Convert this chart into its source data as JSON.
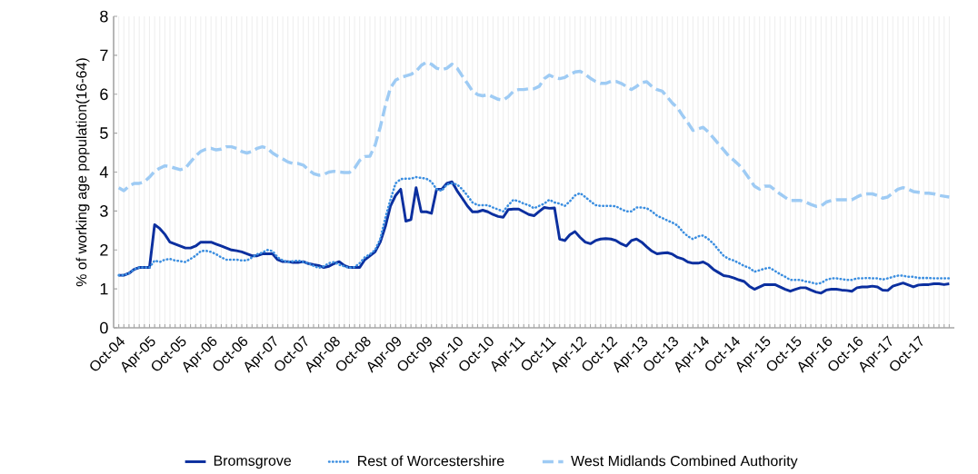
{
  "chart_data": {
    "type": "line",
    "ylabel": "% of working age population(16-64)",
    "categories": [
      "Oct-04",
      null,
      null,
      null,
      null,
      null,
      "Apr-05",
      null,
      null,
      null,
      null,
      null,
      "Oct-05",
      null,
      null,
      null,
      null,
      null,
      "Apr-06",
      null,
      null,
      null,
      null,
      null,
      "Oct-06",
      null,
      null,
      null,
      null,
      null,
      "Apr-07",
      null,
      null,
      null,
      null,
      null,
      "Oct-07",
      null,
      null,
      null,
      null,
      null,
      "Apr-08",
      null,
      null,
      null,
      null,
      null,
      "Oct-08",
      null,
      null,
      null,
      null,
      null,
      "Apr-09",
      null,
      null,
      null,
      null,
      null,
      "Oct-09",
      null,
      null,
      null,
      null,
      null,
      "Apr-10",
      null,
      null,
      null,
      null,
      null,
      "Oct-10",
      null,
      null,
      null,
      null,
      null,
      "Apr-11",
      null,
      null,
      null,
      null,
      null,
      "Oct-11",
      null,
      null,
      null,
      null,
      null,
      "Apr-12",
      null,
      null,
      null,
      null,
      null,
      "Oct-12",
      null,
      null,
      null,
      null,
      null,
      "Apr-13",
      null,
      null,
      null,
      null,
      null,
      "Oct-13",
      null,
      null,
      null,
      null,
      null,
      "Apr-14",
      null,
      null,
      null,
      null,
      null,
      "Oct-14",
      null,
      null,
      null,
      null,
      null,
      "Apr-15",
      null,
      null,
      null,
      null,
      null,
      "Oct-15",
      null,
      null,
      null,
      null,
      null,
      "Apr-16",
      null,
      null,
      null,
      null,
      null,
      "Oct-16",
      null,
      null,
      null,
      null,
      null,
      "Apr-17",
      null,
      null,
      null,
      null,
      null,
      "Oct-17",
      null,
      null,
      null,
      null,
      null,
      null
    ],
    "series": [
      {
        "name": "Bromsgrove",
        "color": "#0b2f9f",
        "line_style": "solid",
        "values": [
          1.35,
          1.35,
          1.4,
          1.5,
          1.55,
          1.55,
          1.55,
          2.65,
          2.55,
          2.4,
          2.2,
          2.15,
          2.1,
          2.05,
          2.05,
          2.1,
          2.2,
          2.2,
          2.2,
          2.15,
          2.1,
          2.05,
          2.0,
          1.98,
          1.95,
          1.9,
          1.85,
          1.85,
          1.9,
          1.9,
          1.9,
          1.75,
          1.7,
          1.7,
          1.68,
          1.68,
          1.7,
          1.65,
          1.62,
          1.6,
          1.55,
          1.58,
          1.65,
          1.7,
          1.6,
          1.55,
          1.55,
          1.55,
          1.75,
          1.85,
          1.95,
          2.2,
          2.6,
          3.13,
          3.4,
          3.56,
          2.74,
          2.78,
          3.6,
          2.98,
          2.98,
          2.94,
          3.56,
          3.56,
          3.71,
          3.75,
          3.52,
          3.33,
          3.13,
          2.98,
          2.98,
          3.02,
          2.98,
          2.91,
          2.86,
          2.84,
          3.04,
          3.05,
          3.05,
          2.98,
          2.91,
          2.88,
          2.99,
          3.09,
          3.07,
          3.08,
          2.28,
          2.24,
          2.39,
          2.47,
          2.32,
          2.2,
          2.16,
          2.24,
          2.28,
          2.29,
          2.28,
          2.24,
          2.16,
          2.1,
          2.24,
          2.28,
          2.2,
          2.08,
          1.97,
          1.9,
          1.92,
          1.93,
          1.89,
          1.81,
          1.77,
          1.69,
          1.66,
          1.66,
          1.69,
          1.62,
          1.5,
          1.42,
          1.34,
          1.32,
          1.28,
          1.23,
          1.19,
          1.07,
          0.99,
          1.05,
          1.11,
          1.11,
          1.11,
          1.05,
          0.99,
          0.94,
          0.99,
          1.03,
          1.03,
          0.97,
          0.92,
          0.89,
          0.97,
          0.99,
          0.99,
          0.97,
          0.96,
          0.94,
          1.03,
          1.05,
          1.05,
          1.07,
          1.05,
          0.97,
          0.96,
          1.07,
          1.11,
          1.15,
          1.1,
          1.05,
          1.1,
          1.11,
          1.11,
          1.13,
          1.13,
          1.11,
          1.13
        ]
      },
      {
        "name": "Rest of Worcestershire",
        "color": "#3b8ee0",
        "line_style": "dotted",
        "values": [
          1.35,
          1.35,
          1.4,
          1.5,
          1.55,
          1.55,
          1.55,
          1.73,
          1.69,
          1.75,
          1.77,
          1.73,
          1.71,
          1.69,
          1.77,
          1.85,
          1.97,
          1.98,
          1.95,
          1.89,
          1.81,
          1.75,
          1.75,
          1.75,
          1.73,
          1.73,
          1.81,
          1.89,
          1.93,
          2.0,
          1.97,
          1.81,
          1.73,
          1.69,
          1.71,
          1.73,
          1.69,
          1.66,
          1.59,
          1.54,
          1.58,
          1.66,
          1.69,
          1.62,
          1.58,
          1.54,
          1.56,
          1.66,
          1.81,
          1.89,
          2.0,
          2.28,
          2.82,
          3.29,
          3.71,
          3.82,
          3.83,
          3.83,
          3.87,
          3.85,
          3.83,
          3.75,
          3.56,
          3.52,
          3.68,
          3.71,
          3.68,
          3.56,
          3.4,
          3.22,
          3.15,
          3.15,
          3.15,
          3.09,
          3.04,
          2.99,
          3.15,
          3.29,
          3.25,
          3.19,
          3.15,
          3.07,
          3.13,
          3.19,
          3.29,
          3.22,
          3.19,
          3.13,
          3.25,
          3.4,
          3.46,
          3.36,
          3.25,
          3.15,
          3.13,
          3.13,
          3.13,
          3.12,
          3.05,
          2.99,
          2.99,
          3.09,
          3.09,
          3.07,
          2.99,
          2.88,
          2.82,
          2.76,
          2.7,
          2.63,
          2.47,
          2.35,
          2.28,
          2.35,
          2.37,
          2.28,
          2.16,
          2.0,
          1.85,
          1.77,
          1.73,
          1.66,
          1.59,
          1.54,
          1.44,
          1.48,
          1.52,
          1.54,
          1.46,
          1.38,
          1.31,
          1.23,
          1.23,
          1.23,
          1.19,
          1.17,
          1.13,
          1.15,
          1.23,
          1.27,
          1.27,
          1.25,
          1.23,
          1.23,
          1.27,
          1.27,
          1.28,
          1.27,
          1.27,
          1.24,
          1.27,
          1.31,
          1.34,
          1.34,
          1.31,
          1.31,
          1.28,
          1.28,
          1.28,
          1.27,
          1.27,
          1.27,
          1.27
        ]
      },
      {
        "name": "West Midlands Combined Authority",
        "color": "#9ecbf4",
        "line_style": "dashed",
        "values": [
          3.6,
          3.52,
          3.64,
          3.71,
          3.71,
          3.75,
          3.87,
          4.02,
          4.1,
          4.16,
          4.14,
          4.1,
          4.06,
          4.1,
          4.26,
          4.41,
          4.53,
          4.59,
          4.61,
          4.57,
          4.59,
          4.65,
          4.65,
          4.61,
          4.53,
          4.49,
          4.53,
          4.61,
          4.65,
          4.61,
          4.49,
          4.41,
          4.34,
          4.26,
          4.22,
          4.22,
          4.18,
          4.06,
          3.96,
          3.92,
          3.94,
          4.0,
          4.02,
          4.0,
          3.99,
          3.99,
          4.1,
          4.3,
          4.4,
          4.41,
          4.69,
          5.15,
          5.7,
          6.16,
          6.36,
          6.43,
          6.47,
          6.51,
          6.59,
          6.74,
          6.82,
          6.77,
          6.67,
          6.63,
          6.67,
          6.77,
          6.67,
          6.47,
          6.28,
          6.08,
          5.99,
          5.96,
          5.99,
          5.93,
          5.87,
          5.85,
          5.94,
          6.08,
          6.12,
          6.12,
          6.14,
          6.14,
          6.2,
          6.4,
          6.49,
          6.43,
          6.4,
          6.43,
          6.51,
          6.57,
          6.59,
          6.51,
          6.41,
          6.33,
          6.28,
          6.28,
          6.33,
          6.33,
          6.28,
          6.2,
          6.12,
          6.2,
          6.3,
          6.32,
          6.2,
          6.12,
          6.08,
          5.93,
          5.77,
          5.65,
          5.45,
          5.27,
          5.07,
          5.11,
          5.15,
          5.03,
          4.88,
          4.72,
          4.57,
          4.41,
          4.3,
          4.18,
          4.02,
          3.83,
          3.64,
          3.56,
          3.64,
          3.64,
          3.54,
          3.44,
          3.35,
          3.27,
          3.27,
          3.27,
          3.23,
          3.17,
          3.12,
          3.13,
          3.23,
          3.27,
          3.29,
          3.29,
          3.29,
          3.29,
          3.36,
          3.42,
          3.44,
          3.44,
          3.4,
          3.33,
          3.36,
          3.46,
          3.56,
          3.6,
          3.56,
          3.5,
          3.48,
          3.46,
          3.46,
          3.44,
          3.4,
          3.38,
          3.36
        ]
      }
    ],
    "ylim": [
      0,
      8
    ],
    "yticks": [
      0,
      1,
      2,
      3,
      4,
      5,
      6,
      7,
      8
    ],
    "grid": "x",
    "legend": "bottom"
  }
}
